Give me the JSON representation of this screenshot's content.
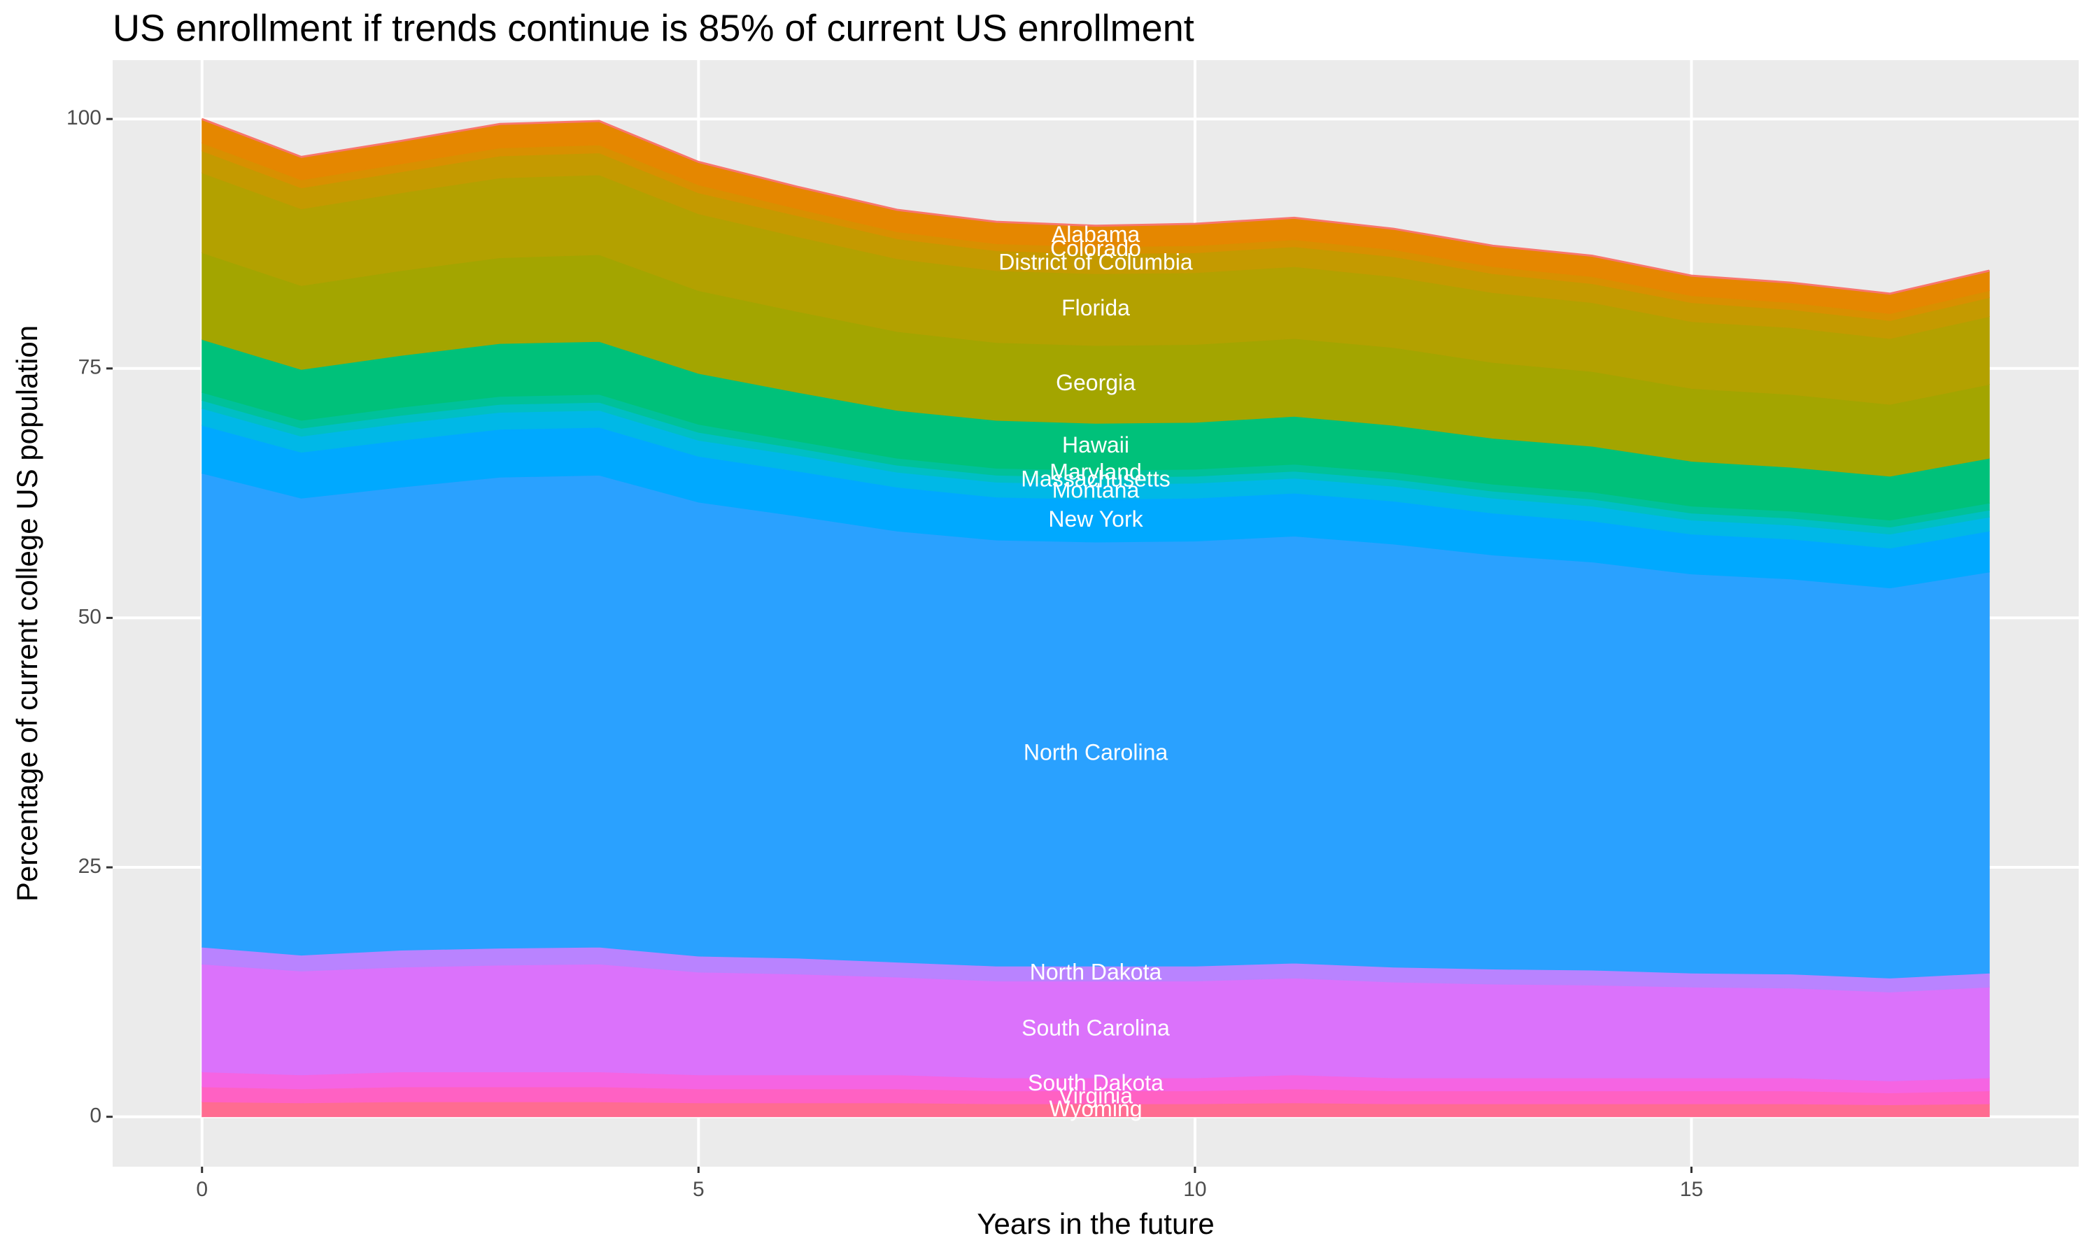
{
  "chart_data": {
    "type": "stacked_area",
    "title": "US enrollment if trends continue is 85% of current US enrollment",
    "x_label": "Years in the future",
    "y_label": "Percentage of current college US population",
    "x": [
      0,
      1,
      2,
      3,
      4,
      5,
      6,
      7,
      8,
      9,
      10,
      11,
      12,
      13,
      14,
      15,
      16,
      17,
      18
    ],
    "xlim": [
      -0.9,
      18.9
    ],
    "xticks": [
      0,
      5,
      10,
      15
    ],
    "ylim": [
      -5,
      105.9
    ],
    "yticks": [
      0,
      25,
      50,
      75,
      100
    ],
    "grid": true,
    "series": [
      {
        "name": "Wyoming",
        "color": "#FF6C91",
        "values": [
          1.5,
          1.4,
          1.5,
          1.5,
          1.5,
          1.4,
          1.4,
          1.4,
          1.3,
          1.3,
          1.3,
          1.4,
          1.3,
          1.3,
          1.3,
          1.3,
          1.3,
          1.2,
          1.3
        ]
      },
      {
        "name": "Virginia",
        "color": "#FF61C3",
        "values": [
          1.5,
          1.4,
          1.5,
          1.5,
          1.5,
          1.4,
          1.4,
          1.4,
          1.3,
          1.3,
          1.3,
          1.4,
          1.3,
          1.3,
          1.3,
          1.3,
          1.3,
          1.2,
          1.3
        ]
      },
      {
        "name": "South Dakota",
        "color": "#F564E3",
        "values": [
          1.5,
          1.4,
          1.5,
          1.5,
          1.5,
          1.4,
          1.4,
          1.4,
          1.3,
          1.3,
          1.3,
          1.4,
          1.3,
          1.3,
          1.3,
          1.3,
          1.3,
          1.2,
          1.3
        ]
      },
      {
        "name": "South Carolina",
        "color": "#DB72FB",
        "values": [
          10.8,
          10.4,
          10.5,
          10.7,
          10.8,
          10.3,
          10.1,
          9.8,
          9.7,
          9.7,
          9.7,
          9.7,
          9.6,
          9.4,
          9.3,
          9.1,
          9.0,
          8.9,
          9.1
        ]
      },
      {
        "name": "North Dakota",
        "color": "#B983FF",
        "values": [
          1.7,
          1.6,
          1.7,
          1.7,
          1.7,
          1.6,
          1.6,
          1.5,
          1.5,
          1.5,
          1.5,
          1.5,
          1.5,
          1.5,
          1.5,
          1.4,
          1.4,
          1.4,
          1.4
        ]
      },
      {
        "name": "North Carolina",
        "color": "#2AA1FF",
        "values": [
          47.5,
          45.8,
          46.4,
          47.2,
          47.3,
          45.5,
          44.3,
          43.2,
          42.7,
          42.5,
          42.6,
          42.8,
          42.4,
          41.5,
          40.9,
          40.0,
          39.6,
          39.1,
          40.2
        ]
      },
      {
        "name": "New York",
        "color": "#00A9FF",
        "values": [
          4.8,
          4.6,
          4.7,
          4.8,
          4.8,
          4.6,
          4.5,
          4.4,
          4.3,
          4.3,
          4.3,
          4.3,
          4.3,
          4.2,
          4.1,
          4.0,
          4.0,
          4.0,
          4.1
        ]
      },
      {
        "name": "Montana",
        "color": "#00B8E7",
        "values": [
          1.7,
          1.6,
          1.7,
          1.7,
          1.7,
          1.6,
          1.6,
          1.5,
          1.5,
          1.5,
          1.5,
          1.5,
          1.5,
          1.5,
          1.5,
          1.4,
          1.4,
          1.4,
          1.4
        ]
      },
      {
        "name": "Massachusetts",
        "color": "#00BFC4",
        "values": [
          0.8,
          0.8,
          0.8,
          0.8,
          0.8,
          0.8,
          0.7,
          0.7,
          0.7,
          0.7,
          0.7,
          0.7,
          0.7,
          0.7,
          0.7,
          0.7,
          0.7,
          0.7,
          0.7
        ]
      },
      {
        "name": "Maryland",
        "color": "#00C19A",
        "values": [
          0.8,
          0.8,
          0.8,
          0.8,
          0.8,
          0.8,
          0.7,
          0.7,
          0.7,
          0.7,
          0.7,
          0.7,
          0.7,
          0.7,
          0.7,
          0.7,
          0.7,
          0.7,
          0.7
        ]
      },
      {
        "name": "Hawaii",
        "color": "#00C17A",
        "values": [
          5.3,
          5.1,
          5.2,
          5.3,
          5.3,
          5.1,
          4.9,
          4.8,
          4.8,
          4.7,
          4.7,
          4.8,
          4.7,
          4.6,
          4.6,
          4.5,
          4.4,
          4.4,
          4.5
        ]
      },
      {
        "name": "Georgia",
        "color": "#A3A500",
        "values": [
          8.7,
          8.4,
          8.5,
          8.6,
          8.7,
          8.3,
          8.1,
          7.9,
          7.8,
          7.8,
          7.8,
          7.8,
          7.8,
          7.6,
          7.5,
          7.3,
          7.3,
          7.2,
          7.4
        ]
      },
      {
        "name": "Florida",
        "color": "#B3A100",
        "values": [
          8.0,
          7.7,
          7.8,
          8.0,
          8.0,
          7.7,
          7.5,
          7.3,
          7.2,
          7.2,
          7.2,
          7.2,
          7.1,
          7.0,
          6.9,
          6.7,
          6.7,
          6.6,
          6.8
        ]
      },
      {
        "name": "District of Columbia",
        "color": "#C49A00",
        "values": [
          2.2,
          2.1,
          2.1,
          2.2,
          2.2,
          2.1,
          2.1,
          2.0,
          2.0,
          2.0,
          2.0,
          2.0,
          2.0,
          1.9,
          1.9,
          1.9,
          1.8,
          1.8,
          1.9
        ]
      },
      {
        "name": "Colorado",
        "color": "#D89000",
        "values": [
          0.8,
          0.8,
          0.8,
          0.8,
          0.8,
          0.8,
          0.7,
          0.7,
          0.7,
          0.7,
          0.7,
          0.7,
          0.7,
          0.7,
          0.7,
          0.7,
          0.7,
          0.7,
          0.7
        ]
      },
      {
        "name": "Alabama",
        "color": "#E58700",
        "values": [
          2.4,
          2.3,
          2.3,
          2.4,
          2.4,
          2.3,
          2.2,
          2.2,
          2.2,
          2.1,
          2.2,
          2.2,
          2.1,
          2.1,
          2.1,
          2.0,
          2.0,
          2.0,
          2.0
        ]
      }
    ]
  }
}
